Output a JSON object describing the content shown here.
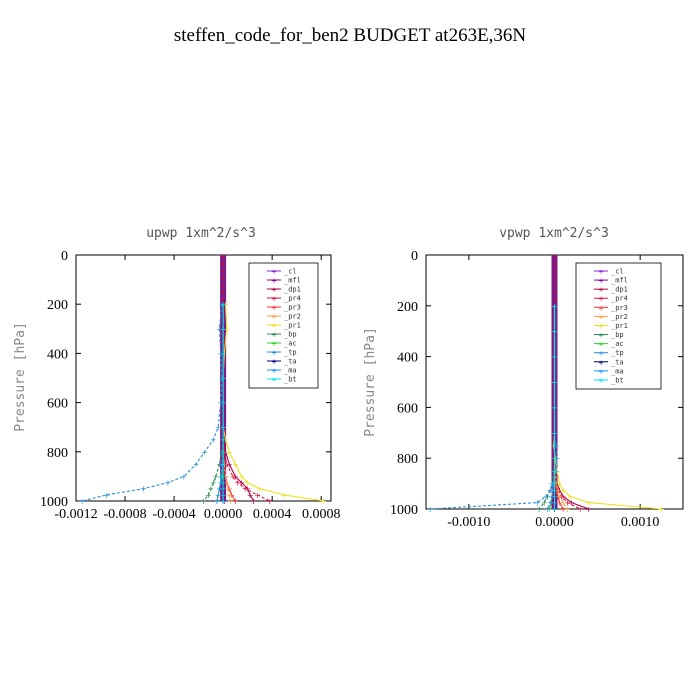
{
  "figure_title": "steffen_code_for_ben2  BUDGET at263E,36N",
  "chart_data": [
    {
      "type": "line",
      "title": "upwp  1xm^2/s^3",
      "ylabel": "Pressure [hPa]",
      "xlim": [
        -0.0012,
        0.00088
      ],
      "ylim": [
        0,
        1000
      ],
      "y_reversed": true,
      "xticks": [
        "-0.0012",
        "-0.0008",
        "-0.0004",
        "0.0000",
        "0.0004",
        "0.0008"
      ],
      "xtick_values": [
        -0.0012,
        -0.0008,
        -0.0004,
        0,
        0.0004,
        0.0008
      ],
      "yticks": [
        0,
        200,
        400,
        600,
        800,
        1000
      ],
      "legend_position": "top-right",
      "legend": [
        "_cl",
        "_mfl",
        "_dp1",
        "_pr4",
        "_pr3",
        "_pr2",
        "_pr1",
        "_bp",
        "_ac",
        "_tp",
        "_ta",
        "_ma",
        "_bt"
      ],
      "y": [
        200,
        300,
        400,
        500,
        600,
        700,
        750,
        800,
        850,
        900,
        925,
        950,
        975,
        1000
      ],
      "series": [
        {
          "name": "_cl",
          "color": "#8a2be2",
          "values": [
            0,
            0,
            0,
            0,
            0,
            0,
            0,
            0,
            0,
            0,
            0,
            0,
            0,
            0
          ]
        },
        {
          "name": "_mfl",
          "color": "#8b008b",
          "values": [
            0,
            0,
            0,
            0,
            0,
            0,
            0,
            0,
            0,
            0,
            0,
            0,
            0,
            1e-05
          ]
        },
        {
          "name": "_dp1",
          "color": "#b0004a",
          "values": [
            0,
            0,
            0,
            0,
            0,
            0,
            0,
            2e-05,
            5e-05,
            0.0001,
            0.00015,
            0.0002,
            0.00022,
            0.00025
          ]
        },
        {
          "name": "_pr4",
          "color": "#dc143c",
          "values": [
            0,
            0,
            0,
            0,
            0,
            0,
            0,
            1e-05,
            3e-05,
            8e-05,
            0.00012,
            0.00018,
            0.00028,
            0.00038
          ]
        },
        {
          "name": "_pr3",
          "color": "#ff3030",
          "values": [
            0,
            0,
            0,
            0,
            0,
            0,
            0,
            0,
            1e-05,
            2e-05,
            3e-05,
            5e-05,
            7e-05,
            0.0001
          ]
        },
        {
          "name": "_pr2",
          "color": "#ffa040",
          "values": [
            0,
            0,
            0,
            0,
            0,
            0,
            0,
            0,
            1e-05,
            2e-05,
            3e-05,
            4e-05,
            5e-05,
            6e-05
          ]
        },
        {
          "name": "_pr1",
          "color": "#f0e020",
          "values": [
            2e-05,
            3e-05,
            1e-05,
            0,
            0,
            0,
            2e-05,
            5e-05,
            0.0001,
            0.00015,
            0.0002,
            0.0003,
            0.0005,
            0.00082
          ]
        },
        {
          "name": "_bp",
          "color": "#2e8b57",
          "values": [
            0,
            0,
            0,
            0,
            0,
            0,
            0,
            -1e-05,
            -3e-05,
            -6e-05,
            -8e-05,
            -0.0001,
            -0.00012,
            -0.00016
          ]
        },
        {
          "name": "_ac",
          "color": "#32cd32",
          "values": [
            0,
            0,
            0,
            0,
            0,
            0,
            0,
            0,
            0,
            -1e-05,
            -2e-05,
            -3e-05,
            -4e-05,
            -5e-05
          ]
        },
        {
          "name": "_tp",
          "color": "#2a8fd8",
          "values": [
            -1e-05,
            -3e-05,
            -2e-05,
            -1e-05,
            -2e-05,
            -4e-05,
            -8e-05,
            -0.00015,
            -0.00022,
            -0.00032,
            -0.00045,
            -0.00065,
            -0.00095,
            -0.00115
          ]
        },
        {
          "name": "_ta",
          "color": "#000080",
          "values": [
            0,
            0,
            0,
            0,
            0,
            0,
            0,
            0,
            0,
            0,
            0,
            0,
            0,
            0
          ]
        },
        {
          "name": "_ma",
          "color": "#1e90ff",
          "values": [
            0,
            0,
            0,
            0,
            0,
            0,
            0,
            0,
            -1e-05,
            -2e-05,
            -2e-05,
            -3e-05,
            -4e-05,
            -5e-05
          ]
        },
        {
          "name": "_bt",
          "color": "#00e5ee",
          "values": [
            0,
            0,
            0,
            0,
            0,
            0,
            0,
            0,
            0,
            0,
            0,
            0,
            0,
            0
          ]
        }
      ]
    },
    {
      "type": "line",
      "title": "vpwp  1xm^2/s^3",
      "ylabel": "Pressure [hPa]",
      "xlim": [
        -0.0015,
        0.0015
      ],
      "ylim": [
        0,
        1000
      ],
      "y_reversed": true,
      "xticks": [
        "-0.0010",
        "0.0000",
        "0.0010"
      ],
      "xtick_values": [
        -0.001,
        0,
        0.001
      ],
      "yticks": [
        0,
        200,
        400,
        600,
        800,
        1000
      ],
      "legend_position": "top-right",
      "legend": [
        "_cl",
        "_mfl",
        "_dp1",
        "_pr4",
        "_pr3",
        "_pr2",
        "_pr1",
        "_bp",
        "_ac",
        "_tp",
        "_ta",
        "_ma",
        "_bt"
      ],
      "y": [
        200,
        300,
        400,
        500,
        600,
        700,
        750,
        800,
        850,
        900,
        925,
        950,
        975,
        1000
      ],
      "series": [
        {
          "name": "_cl",
          "color": "#8a2be2",
          "values": [
            0,
            0,
            0,
            0,
            0,
            0,
            0,
            0,
            0,
            0,
            0,
            0,
            0,
            0
          ]
        },
        {
          "name": "_mfl",
          "color": "#8b008b",
          "values": [
            0,
            0,
            0,
            0,
            0,
            0,
            0,
            0,
            0,
            0,
            0,
            0,
            0,
            0
          ]
        },
        {
          "name": "_dp1",
          "color": "#b0004a",
          "values": [
            0,
            0,
            0,
            0,
            0,
            0,
            0,
            0,
            1e-05,
            3e-05,
            6e-05,
            0.0001,
            0.0002,
            0.0004
          ]
        },
        {
          "name": "_pr4",
          "color": "#dc143c",
          "values": [
            0,
            0,
            0,
            0,
            0,
            0,
            0,
            0,
            1e-05,
            2e-05,
            4e-05,
            8e-05,
            0.00015,
            0.0003
          ]
        },
        {
          "name": "_pr3",
          "color": "#ff3030",
          "values": [
            0,
            0,
            0,
            0,
            0,
            0,
            0,
            0,
            0,
            1e-05,
            2e-05,
            4e-05,
            6e-05,
            0.0001
          ]
        },
        {
          "name": "_pr2",
          "color": "#ffa040",
          "values": [
            0,
            0,
            0,
            0,
            0,
            0,
            0,
            0,
            1e-05,
            2e-05,
            4e-05,
            6e-05,
            0.0001,
            0.00015
          ]
        },
        {
          "name": "_pr1",
          "color": "#f0e020",
          "values": [
            0,
            0,
            0,
            0,
            0,
            0,
            -1e-05,
            1e-05,
            3e-05,
            6e-05,
            0.0001,
            0.00018,
            0.0004,
            0.00125
          ]
        },
        {
          "name": "_bp",
          "color": "#2e8b57",
          "values": [
            0,
            0,
            0,
            0,
            0,
            0,
            0,
            0,
            -1e-05,
            -3e-05,
            -5e-05,
            -8e-05,
            -0.00012,
            -0.00018
          ]
        },
        {
          "name": "_ac",
          "color": "#32cd32",
          "values": [
            0,
            0,
            0,
            0,
            0,
            0,
            0,
            0,
            0,
            -1e-05,
            -2e-05,
            -3e-05,
            -4e-05,
            -6e-05
          ]
        },
        {
          "name": "_tp",
          "color": "#2a8fd8",
          "values": [
            0,
            0,
            0,
            0,
            0,
            0,
            2e-05,
            3e-05,
            2e-05,
            -2e-05,
            -5e-05,
            -0.0001,
            -0.0002,
            -0.00145
          ]
        },
        {
          "name": "_ta",
          "color": "#000080",
          "values": [
            0,
            0,
            0,
            0,
            0,
            0,
            0,
            0,
            0,
            0,
            0,
            0,
            0,
            0
          ]
        },
        {
          "name": "_ma",
          "color": "#1e90ff",
          "values": [
            0,
            0,
            0,
            0,
            0,
            0,
            0,
            0,
            0,
            -1e-05,
            -2e-05,
            -3e-05,
            -5e-05,
            -8e-05
          ]
        },
        {
          "name": "_bt",
          "color": "#00e5ee",
          "values": [
            0,
            0,
            0,
            0,
            0,
            0,
            0,
            0,
            0,
            0,
            0,
            0,
            0,
            0
          ]
        }
      ]
    }
  ]
}
